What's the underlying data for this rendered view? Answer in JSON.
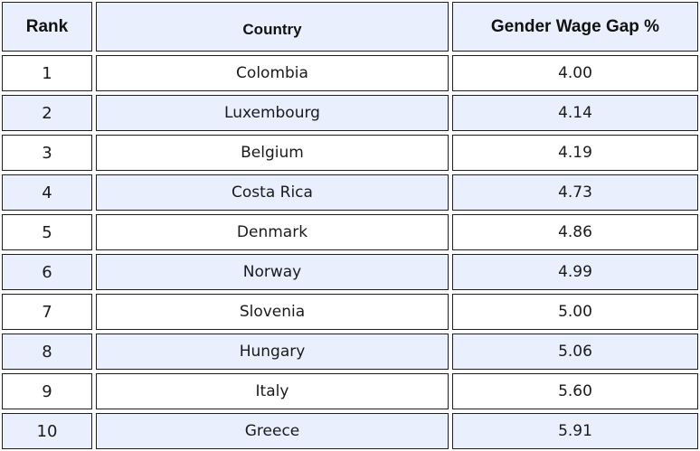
{
  "table": {
    "headers": {
      "rank": "Rank",
      "country": "Country",
      "gap": "Gender Wage Gap %"
    },
    "rows": [
      {
        "rank": "1",
        "country": "Colombia",
        "gap": "4.00"
      },
      {
        "rank": "2",
        "country": "Luxembourg",
        "gap": "4.14"
      },
      {
        "rank": "3",
        "country": "Belgium",
        "gap": "4.19"
      },
      {
        "rank": "4",
        "country": "Costa Rica",
        "gap": "4.73"
      },
      {
        "rank": "5",
        "country": "Denmark",
        "gap": "4.86"
      },
      {
        "rank": "6",
        "country": "Norway",
        "gap": "4.99"
      },
      {
        "rank": "7",
        "country": "Slovenia",
        "gap": "5.00"
      },
      {
        "rank": "8",
        "country": "Hungary",
        "gap": "5.06"
      },
      {
        "rank": "9",
        "country": "Italy",
        "gap": "5.60"
      },
      {
        "rank": "10",
        "country": "Greece",
        "gap": "5.91"
      }
    ]
  },
  "colors": {
    "header_bg": "#e9effd",
    "alt_row_bg": "#e9effd",
    "border": "#1f1f1f"
  }
}
